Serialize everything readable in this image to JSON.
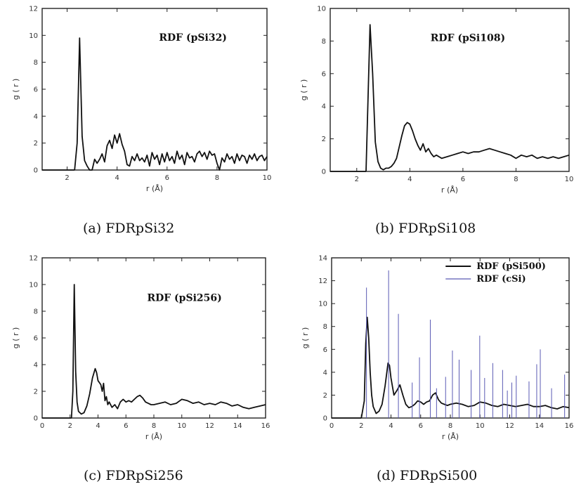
{
  "chart_data": [
    {
      "type": "line",
      "caption": "(a) FDRpSi32",
      "annotation": "RDF (pSi32)",
      "xlabel": "r (Å)",
      "ylabel": "g ( r )",
      "xlim": [
        1,
        10
      ],
      "ylim": [
        0,
        12
      ],
      "xticks": [
        2,
        4,
        6,
        8,
        10
      ],
      "yticks": [
        0,
        2,
        4,
        6,
        8,
        10,
        12
      ],
      "series": [
        {
          "color": "#111111",
          "x": [
            2.3,
            2.4,
            2.5,
            2.6,
            2.7,
            2.8,
            2.9,
            3.0,
            3.1,
            3.2,
            3.3,
            3.4,
            3.5,
            3.6,
            3.7,
            3.8,
            3.9,
            4.0,
            4.1,
            4.2,
            4.3,
            4.4,
            4.5,
            4.6,
            4.7,
            4.8,
            4.9,
            5.0,
            5.1,
            5.2,
            5.3,
            5.4,
            5.5,
            5.6,
            5.7,
            5.8,
            5.9,
            6.0,
            6.1,
            6.2,
            6.3,
            6.4,
            6.5,
            6.6,
            6.7,
            6.8,
            6.9,
            7.0,
            7.1,
            7.2,
            7.3,
            7.4,
            7.5,
            7.6,
            7.7,
            7.8,
            7.9,
            8.0,
            8.1,
            8.2,
            8.3,
            8.4,
            8.5,
            8.6,
            8.7,
            8.8,
            8.9,
            9.0,
            9.1,
            9.2,
            9.3,
            9.4,
            9.5,
            9.6,
            9.7,
            9.8,
            9.9,
            10.0
          ],
          "y": [
            0,
            2.0,
            9.8,
            2.5,
            0.7,
            0.3,
            0,
            0,
            0.8,
            0.5,
            0.8,
            1.2,
            0.6,
            1.8,
            2.2,
            1.6,
            2.6,
            2.0,
            2.7,
            1.9,
            1.4,
            0.4,
            0.3,
            1.0,
            0.7,
            1.2,
            0.7,
            0.9,
            0.6,
            1.1,
            0.3,
            1.3,
            0.8,
            1.1,
            0.4,
            1.2,
            0.6,
            1.3,
            0.7,
            1.0,
            0.5,
            1.4,
            0.8,
            1.1,
            0.4,
            1.3,
            0.9,
            1.0,
            0.6,
            1.2,
            1.4,
            1.0,
            1.3,
            0.8,
            1.4,
            1.1,
            1.2,
            0.5,
            0,
            0.9,
            0.6,
            1.2,
            0.8,
            1.0,
            0.5,
            1.2,
            0.7,
            1.1,
            1.0,
            0.5,
            1.1,
            0.8,
            1.2,
            0.7,
            1.0,
            1.1,
            0.7,
            1.0
          ]
        }
      ]
    },
    {
      "type": "line",
      "caption": "(b) FDRpSi108",
      "annotation": "RDF (pSi108)",
      "xlabel": "r (Å)",
      "ylabel": "g ( r )",
      "xlim": [
        1,
        10
      ],
      "ylim": [
        0,
        10
      ],
      "xticks": [
        2,
        4,
        6,
        8,
        10
      ],
      "yticks": [
        0,
        2,
        4,
        6,
        8,
        10
      ],
      "series": [
        {
          "color": "#111111",
          "x": [
            2.35,
            2.4,
            2.5,
            2.6,
            2.7,
            2.8,
            2.9,
            3.0,
            3.1,
            3.2,
            3.3,
            3.4,
            3.5,
            3.6,
            3.7,
            3.8,
            3.9,
            4.0,
            4.1,
            4.2,
            4.3,
            4.4,
            4.5,
            4.6,
            4.7,
            4.8,
            4.9,
            5.0,
            5.2,
            5.4,
            5.6,
            5.8,
            6.0,
            6.2,
            6.4,
            6.6,
            6.8,
            7.0,
            7.2,
            7.4,
            7.6,
            7.8,
            8.0,
            8.2,
            8.4,
            8.6,
            8.8,
            9.0,
            9.2,
            9.4,
            9.6,
            9.8,
            10.0
          ],
          "y": [
            0,
            3.0,
            9.0,
            6.0,
            1.8,
            0.6,
            0.2,
            0.1,
            0.2,
            0.2,
            0.3,
            0.5,
            0.8,
            1.5,
            2.2,
            2.8,
            3.0,
            2.9,
            2.5,
            2.0,
            1.6,
            1.3,
            1.7,
            1.2,
            1.4,
            1.1,
            0.9,
            1.0,
            0.8,
            0.9,
            1.0,
            1.1,
            1.2,
            1.1,
            1.2,
            1.2,
            1.3,
            1.4,
            1.3,
            1.2,
            1.1,
            1.0,
            0.8,
            1.0,
            0.9,
            1.0,
            0.8,
            0.9,
            0.8,
            0.9,
            0.8,
            0.9,
            1.0
          ]
        }
      ]
    },
    {
      "type": "line",
      "caption": "(c) FDRpSi256",
      "annotation": "RDF (pSi256)",
      "xlabel": "r (Å)",
      "ylabel": "g ( r )",
      "xlim": [
        0,
        16
      ],
      "ylim": [
        0,
        12
      ],
      "xticks": [
        0,
        2,
        4,
        6,
        8,
        10,
        12,
        14,
        16
      ],
      "yticks": [
        0,
        2,
        4,
        6,
        8,
        10,
        12
      ],
      "series": [
        {
          "color": "#111111",
          "x": [
            2.1,
            2.2,
            2.3,
            2.4,
            2.5,
            2.6,
            2.8,
            3.0,
            3.2,
            3.4,
            3.6,
            3.8,
            3.9,
            4.0,
            4.2,
            4.3,
            4.4,
            4.5,
            4.6,
            4.7,
            4.8,
            5.0,
            5.2,
            5.4,
            5.6,
            5.8,
            6.0,
            6.2,
            6.4,
            6.6,
            6.8,
            7.0,
            7.2,
            7.4,
            7.6,
            7.8,
            8.0,
            8.4,
            8.8,
            9.2,
            9.6,
            10.0,
            10.4,
            10.8,
            11.2,
            11.6,
            12.0,
            12.4,
            12.8,
            13.2,
            13.6,
            14.0,
            14.4,
            14.8,
            15.2,
            15.6,
            16.0
          ],
          "y": [
            0,
            2.0,
            10.0,
            3.5,
            1.2,
            0.5,
            0.3,
            0.4,
            0.9,
            1.8,
            3.0,
            3.7,
            3.4,
            2.8,
            2.5,
            2.0,
            2.6,
            1.3,
            1.6,
            1.0,
            1.2,
            0.8,
            1.0,
            0.7,
            1.2,
            1.4,
            1.2,
            1.3,
            1.2,
            1.4,
            1.6,
            1.7,
            1.5,
            1.2,
            1.1,
            1.0,
            1.0,
            1.1,
            1.2,
            1.0,
            1.1,
            1.4,
            1.3,
            1.1,
            1.2,
            1.0,
            1.1,
            1.0,
            1.2,
            1.1,
            0.9,
            1.0,
            0.8,
            0.7,
            0.8,
            0.9,
            1.0
          ]
        }
      ]
    },
    {
      "type": "line",
      "caption": "(d) FDRpSi500",
      "xlabel": "r (Å)",
      "ylabel": "g ( r )",
      "xlim": [
        0,
        16
      ],
      "ylim": [
        0,
        14
      ],
      "xticks": [
        0,
        2,
        4,
        6,
        8,
        10,
        12,
        14,
        16
      ],
      "yticks": [
        0,
        2,
        4,
        6,
        8,
        10,
        12,
        14
      ],
      "legend_position": "top-right",
      "series": [
        {
          "name": "RDF (pSi500)",
          "color": "#111111",
          "x": [
            2.0,
            2.2,
            2.3,
            2.4,
            2.5,
            2.6,
            2.7,
            2.8,
            3.0,
            3.2,
            3.4,
            3.6,
            3.8,
            3.9,
            4.0,
            4.2,
            4.4,
            4.6,
            4.8,
            5.0,
            5.2,
            5.4,
            5.6,
            5.8,
            6.0,
            6.2,
            6.4,
            6.6,
            6.8,
            7.0,
            7.2,
            7.4,
            7.6,
            7.8,
            8.0,
            8.4,
            8.8,
            9.2,
            9.6,
            10.0,
            10.4,
            10.8,
            11.2,
            11.6,
            12.0,
            12.4,
            12.8,
            13.2,
            13.6,
            14.0,
            14.4,
            14.8,
            15.2,
            15.6,
            16.0
          ],
          "y": [
            0,
            1.5,
            6.5,
            8.8,
            7.0,
            4.0,
            2.0,
            1.0,
            0.4,
            0.6,
            1.2,
            2.8,
            4.8,
            4.6,
            3.5,
            2.0,
            2.4,
            2.9,
            2.0,
            1.2,
            0.9,
            1.0,
            1.2,
            1.5,
            1.4,
            1.2,
            1.4,
            1.5,
            2.0,
            2.2,
            1.6,
            1.3,
            1.2,
            1.1,
            1.2,
            1.3,
            1.2,
            1.0,
            1.1,
            1.4,
            1.3,
            1.1,
            1.0,
            1.2,
            1.1,
            1.0,
            1.1,
            1.2,
            1.0,
            1.0,
            1.1,
            0.9,
            0.8,
            1.0,
            0.9
          ]
        },
        {
          "name": "RDF (cSi)",
          "color": "#5a5ab4",
          "peaks": [
            {
              "x": 2.35,
              "y": 11.4
            },
            {
              "x": 3.84,
              "y": 12.9
            },
            {
              "x": 4.5,
              "y": 9.1
            },
            {
              "x": 5.43,
              "y": 3.1
            },
            {
              "x": 5.92,
              "y": 5.3
            },
            {
              "x": 6.65,
              "y": 8.6
            },
            {
              "x": 7.07,
              "y": 2.6
            },
            {
              "x": 7.68,
              "y": 3.6
            },
            {
              "x": 8.14,
              "y": 5.9
            },
            {
              "x": 8.59,
              "y": 5.1
            },
            {
              "x": 9.4,
              "y": 4.2
            },
            {
              "x": 9.98,
              "y": 7.2
            },
            {
              "x": 10.31,
              "y": 3.5
            },
            {
              "x": 10.86,
              "y": 4.8
            },
            {
              "x": 11.52,
              "y": 4.2
            },
            {
              "x": 11.84,
              "y": 2.4
            },
            {
              "x": 12.14,
              "y": 3.1
            },
            {
              "x": 12.44,
              "y": 3.7
            },
            {
              "x": 13.3,
              "y": 3.2
            },
            {
              "x": 13.82,
              "y": 4.7
            },
            {
              "x": 14.06,
              "y": 6.0
            },
            {
              "x": 14.82,
              "y": 2.6
            },
            {
              "x": 15.7,
              "y": 3.8
            }
          ]
        }
      ]
    }
  ]
}
